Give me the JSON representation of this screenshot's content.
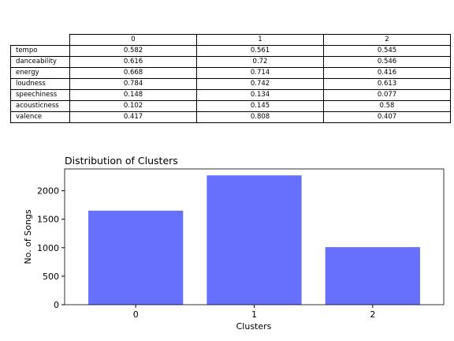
{
  "table": {
    "columns": [
      "0",
      "1",
      "2"
    ],
    "rows": [
      {
        "label": "tempo",
        "values": [
          "0.582",
          "0.561",
          "0.545"
        ]
      },
      {
        "label": "danceability",
        "values": [
          "0.616",
          "0.72",
          "0.546"
        ]
      },
      {
        "label": "energy",
        "values": [
          "0.668",
          "0.714",
          "0.416"
        ]
      },
      {
        "label": "loudness",
        "values": [
          "0.784",
          "0.742",
          "0.613"
        ]
      },
      {
        "label": "speechiness",
        "values": [
          "0.148",
          "0.134",
          "0.077"
        ]
      },
      {
        "label": "acousticness",
        "values": [
          "0.102",
          "0.145",
          "0.58"
        ]
      },
      {
        "label": "valence",
        "values": [
          "0.417",
          "0.808",
          "0.407"
        ]
      }
    ]
  },
  "chart_data": {
    "type": "bar",
    "title": "Distribution of Clusters",
    "xlabel": "Clusters",
    "ylabel": "No. of Songs",
    "categories": [
      "0",
      "1",
      "2"
    ],
    "values": [
      1650,
      2270,
      1010
    ],
    "ylim": [
      0,
      2383
    ],
    "yticks": [
      0,
      500,
      1000,
      1500,
      2000
    ],
    "bar_color": "#6670fc",
    "grid": false,
    "legend": "none"
  }
}
